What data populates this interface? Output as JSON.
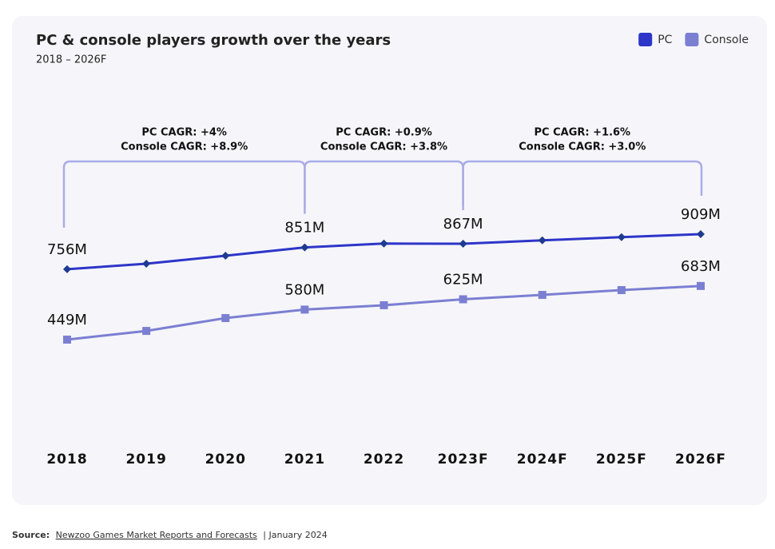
{
  "chart_data": {
    "type": "line",
    "title": "PC & console players growth over the years",
    "subtitle": "2018 – 2026F",
    "categories": [
      "2018",
      "2019",
      "2020",
      "2021",
      "2022",
      "2023F",
      "2024F",
      "2025F",
      "2026F"
    ],
    "series": [
      {
        "name": "PC",
        "color": "#2e35c9",
        "marker": "diamond",
        "values": [
          756,
          780,
          815,
          851,
          868,
          867,
          882,
          896,
          909
        ],
        "value_labels": [
          "756M",
          null,
          null,
          "851M",
          null,
          "867M",
          null,
          null,
          "909M"
        ]
      },
      {
        "name": "Console",
        "color": "#7b7fd2",
        "marker": "square",
        "values": [
          449,
          487,
          543,
          580,
          599,
          625,
          644,
          665,
          683
        ],
        "value_labels": [
          "449M",
          null,
          null,
          "580M",
          null,
          "625M",
          null,
          null,
          "683M"
        ]
      }
    ],
    "annotations": [
      {
        "pc": "PC CAGR: +4%",
        "console": "Console CAGR: +8.9%"
      },
      {
        "pc": "PC CAGR: +0.9%",
        "console": "Console CAGR: +3.8%"
      },
      {
        "pc": "PC CAGR: +1.6%",
        "console": "Console CAGR: +3.0%"
      }
    ],
    "legend": "top-right",
    "source": {
      "label": "Source:",
      "link": "Newzoo Games Market Reports and Forecasts",
      "date": "| January 2024"
    }
  }
}
